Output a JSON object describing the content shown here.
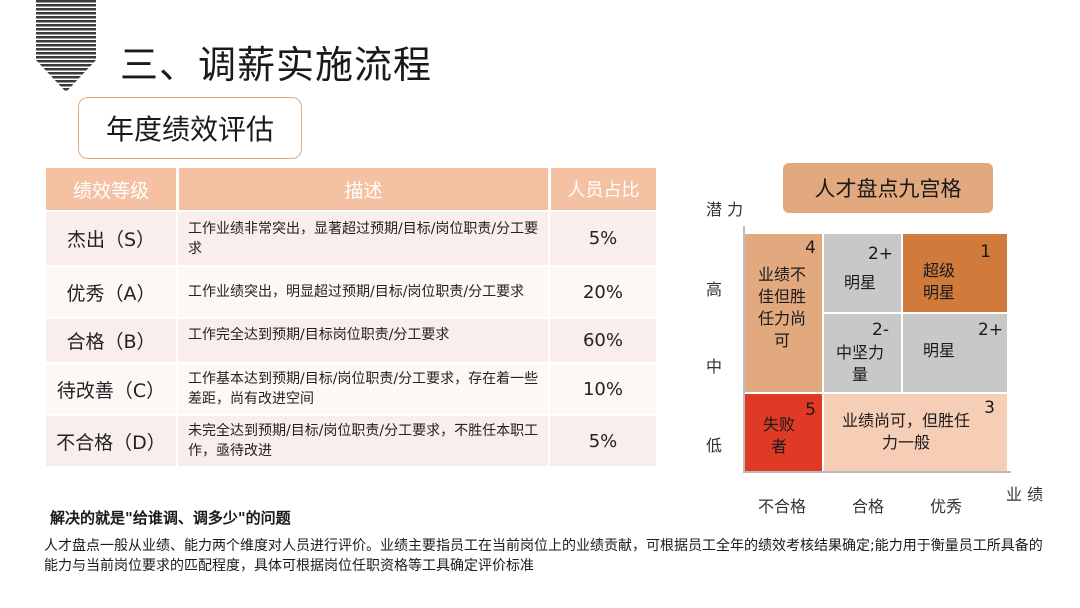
{
  "page_title": "三、调薪实施流程",
  "subtitle": "年度绩效评估",
  "table": {
    "headers": [
      "绩效等级",
      "描述",
      "人员占比"
    ],
    "rows": [
      {
        "grade": "杰出（S）",
        "desc": "工作业绩非常突出，显著超过预期/目标/岗位职责/分工要求",
        "ratio": "5%"
      },
      {
        "grade": "优秀（A）",
        "desc": "工作业绩突出，明显超过预期/目标/岗位职责/分工要求",
        "ratio": "20%"
      },
      {
        "grade": "合格（B）",
        "desc": "工作完全达到预期/目标岗位职责/分工要求",
        "ratio": "60%"
      },
      {
        "grade": "待改善（C）",
        "desc": "工作基本达到预期/目标/岗位职责/分工要求，存在着一些差距，尚有改进空间",
        "ratio": "10%"
      },
      {
        "grade": "不合格（D）",
        "desc": "未完全达到预期/目标/岗位职责/分工要求，不胜任本职工作，亟待改进",
        "ratio": "5%"
      }
    ]
  },
  "note_bold": "解决的就是\"给谁调、调多少\"的问题",
  "note_text": "人才盘点一般从业绩、能力两个维度对人员进行评价。业绩主要指员工在当前岗位上的业绩贡献，可根据员工全年的绩效考核结果确定;能力用于衡量员工所具备的能力与当前岗位要求的匹配程度，具体可根据岗位任职资格等工具确定评价标准",
  "nine_grid": {
    "title": "人才盘点九宫格",
    "y_axis_label": "潜 力",
    "x_axis_label": "业 绩",
    "y_ticks": [
      "高",
      "中",
      "低"
    ],
    "x_ticks": [
      "不合格",
      "合格",
      "优秀"
    ],
    "cells": {
      "c4": {
        "num": "4",
        "text": "业绩不佳但胜任力尚可"
      },
      "c2plus_top": {
        "num": "2+",
        "text": "明星"
      },
      "c1": {
        "num": "1",
        "text": "超级明星"
      },
      "c2minus": {
        "num": "2-",
        "text": "中坚力量"
      },
      "c2plus_mid": {
        "num": "2+",
        "text": "明星"
      },
      "c5": {
        "num": "5",
        "text": "失败者"
      },
      "c3": {
        "num": "3",
        "text": "业绩尚可，但胜任力一般"
      }
    },
    "colors": {
      "tan": "#e2a97e",
      "gray": "#c8c8c8",
      "orange": "#d07a3c",
      "red": "#e03a26",
      "light": "#f6cdb5"
    }
  }
}
